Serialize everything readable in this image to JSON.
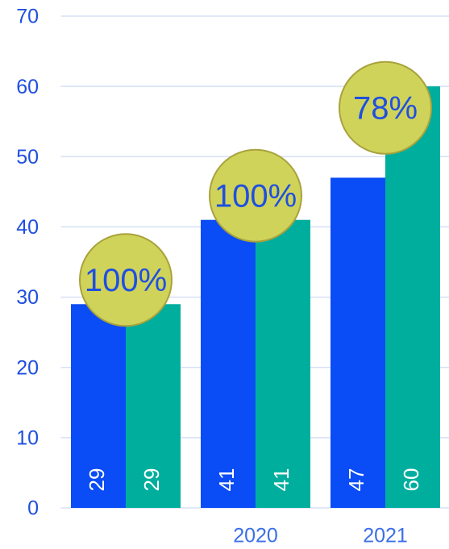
{
  "chart_data": {
    "type": "bar",
    "categories": [
      null,
      "2020",
      "2021"
    ],
    "series": [
      {
        "color": "#0a4cf5",
        "values": [
          29,
          41,
          47
        ]
      },
      {
        "color": "#00ae9e",
        "values": [
          29,
          41,
          60
        ]
      }
    ],
    "annotations": [
      "100%",
      "100%",
      "78%"
    ],
    "annotation_color": "#cfd35a",
    "ylim": [
      0,
      70
    ],
    "yticks": [
      0,
      10,
      20,
      30,
      40,
      50,
      60,
      70
    ],
    "grid": true
  }
}
